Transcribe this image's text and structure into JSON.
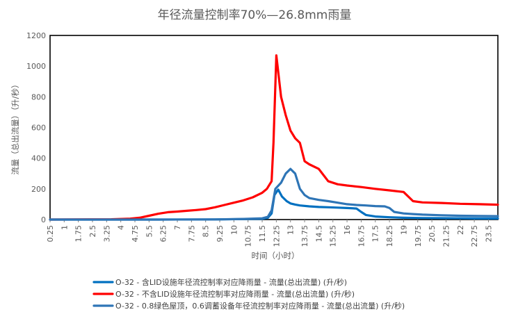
{
  "chart_data": {
    "type": "line",
    "title": "年径流量控制率70%—26.8mm雨量",
    "xlabel": "时间（小时）",
    "ylabel": "流量（总出流量）（升/秒）",
    "ylim": [
      0,
      1200
    ],
    "xlim": [
      0.25,
      24
    ],
    "y_ticks": [
      0,
      200,
      400,
      600,
      800,
      1000,
      1200
    ],
    "x_tick_labels": [
      "0.25",
      "1",
      "1.75",
      "2.5",
      "3.25",
      "4",
      "4.75",
      "5.5",
      "6.25",
      "7",
      "7.75",
      "8.5",
      "9.25",
      "10",
      "10.75",
      "11.5",
      "12.25",
      "13",
      "13.75",
      "14.5",
      "15.25",
      "16",
      "16.75",
      "17.5",
      "18.25",
      "19",
      "19.75",
      "20.5",
      "21.25",
      "22",
      "22.75",
      "23.5"
    ],
    "grid": false,
    "legend_position": "bottom",
    "series": [
      {
        "name": "O-32 - 含LID设施年径流控制率对应降雨量 - 流量(总出流量) (升/秒)",
        "color": "#0070C0",
        "points": [
          [
            0.25,
            0
          ],
          [
            6,
            0
          ],
          [
            9,
            1
          ],
          [
            10.5,
            3
          ],
          [
            11.5,
            5
          ],
          [
            11.8,
            12
          ],
          [
            12.0,
            40
          ],
          [
            12.15,
            160
          ],
          [
            12.35,
            195
          ],
          [
            12.55,
            150
          ],
          [
            12.8,
            120
          ],
          [
            13.0,
            105
          ],
          [
            13.25,
            98
          ],
          [
            13.5,
            92
          ],
          [
            14.0,
            86
          ],
          [
            14.5,
            82
          ],
          [
            15.0,
            80
          ],
          [
            15.5,
            78
          ],
          [
            16.0,
            75
          ],
          [
            16.5,
            72
          ],
          [
            16.75,
            50
          ],
          [
            17.0,
            30
          ],
          [
            17.5,
            20
          ],
          [
            18.25,
            15
          ],
          [
            19.0,
            12
          ],
          [
            20.0,
            10
          ],
          [
            21.0,
            9
          ],
          [
            22.0,
            8
          ],
          [
            23.0,
            7
          ],
          [
            24.0,
            7
          ]
        ]
      },
      {
        "name": "O-32 - 不含LID设施年径流控制率对应降雨量 - 流量(总出流量) (升/秒)",
        "color": "#FF0000",
        "points": [
          [
            0.25,
            0
          ],
          [
            3.5,
            2
          ],
          [
            4.5,
            6
          ],
          [
            5.0,
            12
          ],
          [
            5.5,
            25
          ],
          [
            6.0,
            38
          ],
          [
            6.5,
            48
          ],
          [
            7.0,
            52
          ],
          [
            7.5,
            57
          ],
          [
            8.0,
            62
          ],
          [
            8.5,
            68
          ],
          [
            9.0,
            80
          ],
          [
            9.5,
            95
          ],
          [
            10.0,
            110
          ],
          [
            10.5,
            125
          ],
          [
            11.0,
            145
          ],
          [
            11.5,
            175
          ],
          [
            11.75,
            200
          ],
          [
            12.0,
            250
          ],
          [
            12.1,
            500
          ],
          [
            12.25,
            1070
          ],
          [
            12.5,
            800
          ],
          [
            12.75,
            680
          ],
          [
            13.0,
            580
          ],
          [
            13.25,
            530
          ],
          [
            13.5,
            500
          ],
          [
            13.75,
            380
          ],
          [
            14.0,
            360
          ],
          [
            14.5,
            330
          ],
          [
            15.0,
            250
          ],
          [
            15.5,
            230
          ],
          [
            16.0,
            222
          ],
          [
            16.75,
            212
          ],
          [
            17.5,
            200
          ],
          [
            18.25,
            190
          ],
          [
            19.0,
            180
          ],
          [
            19.5,
            120
          ],
          [
            20.0,
            112
          ],
          [
            21.0,
            108
          ],
          [
            22.0,
            103
          ],
          [
            23.0,
            100
          ],
          [
            24.0,
            97
          ]
        ]
      },
      {
        "name": "O-32 - 0.8绿色屋顶，0.6调蓄设备年径流控制率对应降雨量 - 流量(总出流量) (升/秒)",
        "color": "#2E75B6",
        "points": [
          [
            0.25,
            0
          ],
          [
            6,
            0
          ],
          [
            9,
            1
          ],
          [
            10.5,
            4
          ],
          [
            11.5,
            8
          ],
          [
            11.8,
            18
          ],
          [
            12.0,
            60
          ],
          [
            12.2,
            200
          ],
          [
            12.5,
            240
          ],
          [
            12.75,
            300
          ],
          [
            13.0,
            330
          ],
          [
            13.25,
            300
          ],
          [
            13.5,
            200
          ],
          [
            13.75,
            160
          ],
          [
            14.0,
            140
          ],
          [
            14.5,
            128
          ],
          [
            15.0,
            120
          ],
          [
            15.5,
            110
          ],
          [
            16.0,
            100
          ],
          [
            16.5,
            95
          ],
          [
            17.0,
            92
          ],
          [
            17.5,
            88
          ],
          [
            18.0,
            86
          ],
          [
            18.25,
            75
          ],
          [
            18.5,
            50
          ],
          [
            19.0,
            40
          ],
          [
            19.5,
            36
          ],
          [
            20.0,
            32
          ],
          [
            21.0,
            28
          ],
          [
            22.0,
            25
          ],
          [
            23.0,
            23
          ],
          [
            24.0,
            22
          ]
        ]
      }
    ]
  }
}
